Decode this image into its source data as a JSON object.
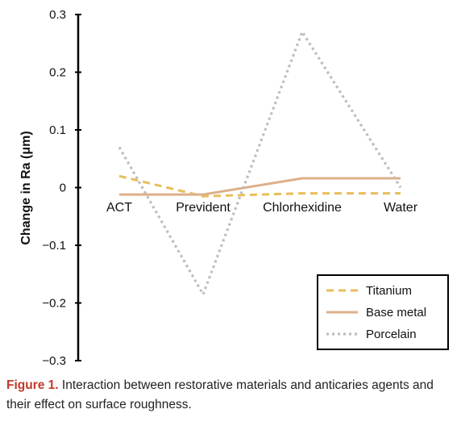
{
  "chart_data": {
    "type": "line",
    "categories": [
      "ACT",
      "Prevident",
      "Chlorhexidine",
      "Water"
    ],
    "series": [
      {
        "name": "Titanium",
        "values": [
          0.02,
          -0.015,
          -0.01,
          -0.01
        ],
        "color": "#E8BE5A",
        "style": "dashed"
      },
      {
        "name": "Base metal",
        "values": [
          -0.012,
          -0.012,
          0.016,
          0.016
        ],
        "color": "#DDB08A",
        "style": "solid"
      },
      {
        "name": "Porcelain",
        "values": [
          0.07,
          -0.185,
          0.27,
          0.0
        ],
        "color": "#BDBDBD",
        "style": "dotted"
      }
    ],
    "ylabel": "Change in Ra (μm)",
    "xlabel": "",
    "ylim": [
      -0.3,
      0.3
    ],
    "yticks": [
      -0.3,
      -0.2,
      -0.1,
      0,
      0.1,
      0.2,
      0.3
    ],
    "ytick_labels": [
      "−0.3",
      "−0.2",
      "−0.1",
      "0",
      "0.1",
      "0.2",
      "0.3"
    ],
    "grid": false,
    "legend_position": "bottom-right"
  },
  "caption": {
    "figure_label": "Figure 1.",
    "text": " Interaction between restorative materials and anticaries agents and their effect on surface roughness."
  }
}
